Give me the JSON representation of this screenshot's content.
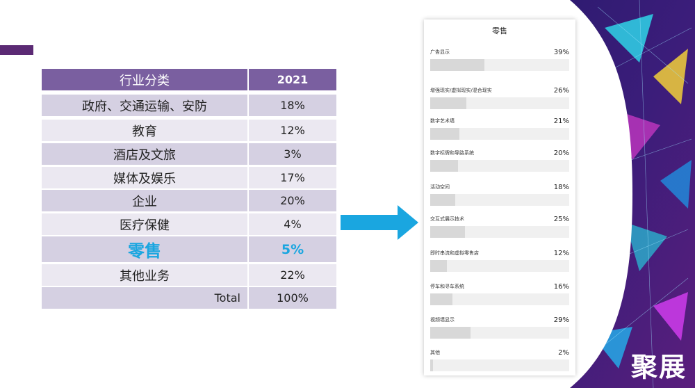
{
  "table": {
    "header": {
      "category": "行业分类",
      "year": "2021"
    },
    "rows": [
      {
        "name": "政府、交通运输、安防",
        "value": "18%"
      },
      {
        "name": "教育",
        "value": "12%"
      },
      {
        "name": "酒店及文旅",
        "value": "3%"
      },
      {
        "name": "媒体及娱乐",
        "value": "17%"
      },
      {
        "name": "企业",
        "value": "20%"
      },
      {
        "name": "医疗保健",
        "value": "4%"
      },
      {
        "name": "零售",
        "value": "5%"
      },
      {
        "name": "其他业务",
        "value": "22%"
      },
      {
        "name": "Total",
        "value": "100%"
      }
    ]
  },
  "survey": {
    "title": "零售",
    "items": [
      {
        "label": "广告显示",
        "pct": "39%",
        "fraction": 0.39
      },
      {
        "label": "增强现实/虚拟现实/混合现实",
        "pct": "26%",
        "fraction": 0.26
      },
      {
        "label": "数字艺术墙",
        "pct": "21%",
        "fraction": 0.21
      },
      {
        "label": "数字标牌和导路系统",
        "pct": "20%",
        "fraction": 0.2
      },
      {
        "label": "活动空间",
        "pct": "18%",
        "fraction": 0.18
      },
      {
        "label": "交互式展示技术",
        "pct": "25%",
        "fraction": 0.25
      },
      {
        "label": "即时串流和虚拟零售店",
        "pct": "12%",
        "fraction": 0.12
      },
      {
        "label": "停车和寻车系统",
        "pct": "16%",
        "fraction": 0.16
      },
      {
        "label": "视频墙显示",
        "pct": "29%",
        "fraction": 0.29
      },
      {
        "label": "其他",
        "pct": "2%",
        "fraction": 0.02
      }
    ]
  },
  "logo": {
    "text": "聚展"
  },
  "colors": {
    "accent": "#5b2a74",
    "header": "#7a5fa0",
    "retail_highlight": "#1aa6e0",
    "arrow": "#1aa6e0"
  }
}
